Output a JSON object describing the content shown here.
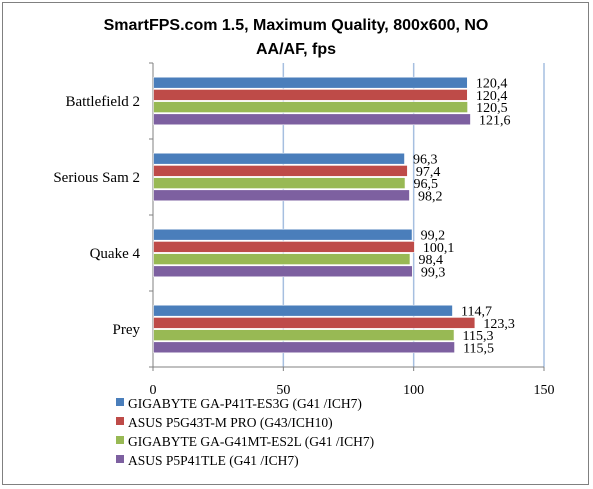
{
  "chart_data": {
    "type": "bar",
    "orientation": "horizontal",
    "title": "SmartFPS.com 1.5, Maximum Quality, 800x600, NO AA/AF, fps",
    "title_lines": [
      "SmartFPS.com 1.5, Maximum Quality, 800x600, NO",
      "AA/AF, fps"
    ],
    "categories": [
      "Battlefield 2",
      "Serious Sam 2",
      "Quake 4",
      "Prey"
    ],
    "series": [
      {
        "name": "GIGABYTE GA-P41T-ES3G (G41 /ICH7)",
        "color": "#4a7ebb",
        "values": [
          120.4,
          96.3,
          99.2,
          114.7
        ],
        "labels": [
          "120,4",
          "96,3",
          "99,2",
          "114,7"
        ]
      },
      {
        "name": "ASUS P5G43T-M PRO (G43/ICH10)",
        "color": "#be4b48",
        "values": [
          120.4,
          97.4,
          100.1,
          123.3
        ],
        "labels": [
          "120,4",
          "97,4",
          "100,1",
          "123,3"
        ]
      },
      {
        "name": "GIGABYTE GA-G41MT-ES2L (G41 /ICH7)",
        "color": "#98b954",
        "values": [
          120.5,
          96.5,
          98.4,
          115.3
        ],
        "labels": [
          "120,5",
          "96,5",
          "98,4",
          "115,3"
        ]
      },
      {
        "name": "ASUS P5P41TLE (G41 /ICH7)",
        "color": "#7d60a0",
        "values": [
          121.6,
          98.2,
          99.3,
          115.5
        ],
        "labels": [
          "121,6",
          "98,2",
          "99,3",
          "115,5"
        ]
      }
    ],
    "xlim": [
      0,
      150
    ],
    "xticks": [
      0,
      50,
      100,
      150
    ],
    "xtick_labels": [
      "0",
      "50",
      "100",
      "150"
    ],
    "grid": true,
    "legend_position": "bottom"
  }
}
